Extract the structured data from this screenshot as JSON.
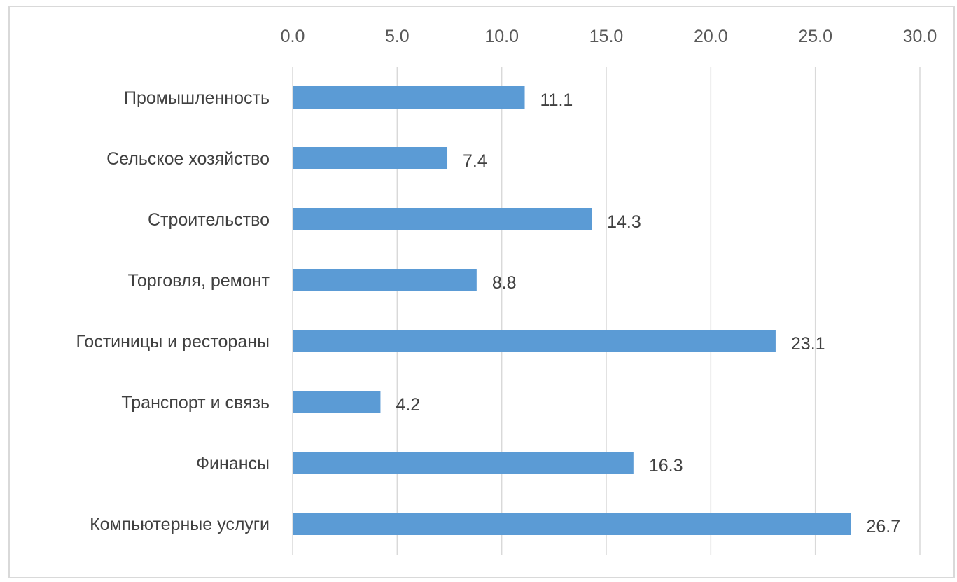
{
  "chart_data": {
    "type": "bar",
    "orientation": "horizontal",
    "categories": [
      "Промышленность",
      "Сельское хозяйство",
      "Строительство",
      "Торговля, ремонт",
      "Гостиницы и рестораны",
      "Транспорт и связь",
      "Финансы",
      "Компьютерные услуги"
    ],
    "values": [
      11.1,
      7.4,
      14.3,
      8.8,
      23.1,
      4.2,
      16.3,
      26.7
    ],
    "value_labels": [
      "11.1",
      "7.4",
      "14.3",
      "8.8",
      "23.1",
      "4.2",
      "16.3",
      "26.7"
    ],
    "xlim": [
      0,
      30
    ],
    "xticks": [
      "0.0",
      "5.0",
      "10.0",
      "15.0",
      "20.0",
      "25.0",
      "30.0"
    ],
    "x_axis_position": "top",
    "grid": true,
    "legend": false,
    "bar_color": "#5b9bd5",
    "grid_color": "#d9d9d9"
  }
}
